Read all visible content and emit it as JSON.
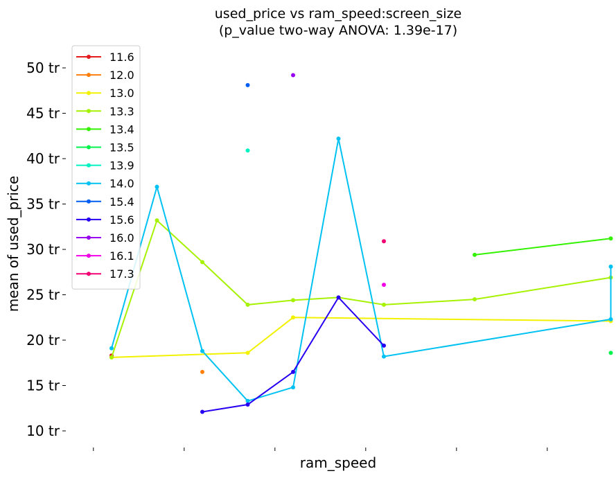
{
  "chart_data": {
    "type": "line",
    "title_line1": "used_price vs ram_speed:screen_size",
    "title_line2": "(p_value two-way ANOVA: 1.39e-17)",
    "xlabel": "ram_speed",
    "ylabel": "mean of used_price",
    "ylim": [
      8.5,
      52.5
    ],
    "xlim": [
      0,
      12
    ],
    "x_tick_positions": [
      -0.4,
      1.6,
      3.6,
      5.6,
      7.6,
      9.6,
      11.6
    ],
    "y_ticks": [
      10,
      15,
      20,
      25,
      30,
      35,
      40,
      45,
      50
    ],
    "y_tick_labels": [
      "10 tr",
      "15 tr",
      "20 tr",
      "25 tr",
      "30 tr",
      "35 tr",
      "40 tr",
      "45 tr",
      "50 tr"
    ],
    "grid": false,
    "legend_position": "upper-left",
    "series": [
      {
        "name": "11.6",
        "color": "#e41a1c",
        "points": [
          [
            0,
            18.3
          ]
        ]
      },
      {
        "name": "12.0",
        "color": "#ff7f0e",
        "points": [
          [
            2,
            16.5
          ]
        ]
      },
      {
        "name": "13.0",
        "color": "#f2f200",
        "points": [
          [
            0,
            18.1
          ],
          [
            3,
            18.6
          ],
          [
            4,
            22.5
          ],
          [
            11,
            22.1
          ]
        ]
      },
      {
        "name": "13.3",
        "color": "#a6f200",
        "points": [
          [
            0,
            18.1
          ],
          [
            1,
            33.2
          ],
          [
            2,
            28.6
          ],
          [
            3,
            23.9
          ],
          [
            4,
            24.4
          ],
          [
            5,
            24.7
          ],
          [
            6,
            23.9
          ],
          [
            8,
            24.5
          ],
          [
            11,
            26.9
          ]
        ]
      },
      {
        "name": "13.4",
        "color": "#33f200",
        "points": [
          [
            8,
            29.4
          ],
          [
            11,
            31.2
          ]
        ]
      },
      {
        "name": "13.5",
        "color": "#00f24d",
        "points": [
          [
            11,
            18.6
          ]
        ]
      },
      {
        "name": "13.9",
        "color": "#00f2c2",
        "points": [
          [
            3,
            40.9
          ]
        ]
      },
      {
        "name": "14.0",
        "color": "#00c2f2",
        "points": [
          [
            0,
            19.1
          ],
          [
            1,
            36.9
          ],
          [
            2,
            18.8
          ],
          [
            3,
            13.3
          ],
          [
            4,
            14.8
          ],
          [
            5,
            42.2
          ],
          [
            6,
            18.2
          ],
          [
            11,
            22.3
          ],
          [
            11,
            28.1
          ]
        ]
      },
      {
        "name": "15.4",
        "color": "#005ff2",
        "points": [
          [
            3,
            48.1
          ]
        ]
      },
      {
        "name": "15.6",
        "color": "#2600f2",
        "points": [
          [
            2,
            12.1
          ],
          [
            3,
            12.9
          ],
          [
            4,
            16.5
          ],
          [
            5,
            24.7
          ],
          [
            6,
            19.4
          ]
        ]
      },
      {
        "name": "16.0",
        "color": "#9900f2",
        "points": [
          [
            4,
            49.2
          ]
        ]
      },
      {
        "name": "16.1",
        "color": "#f200e6",
        "points": [
          [
            6,
            26.1
          ]
        ]
      },
      {
        "name": "17.3",
        "color": "#f20073",
        "points": [
          [
            6,
            30.9
          ]
        ]
      }
    ]
  }
}
